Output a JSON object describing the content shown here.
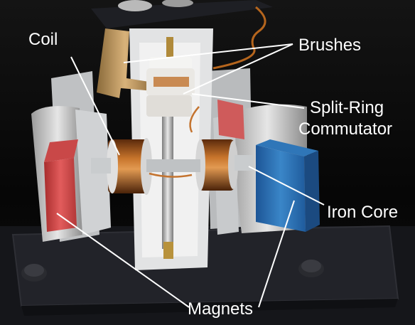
{
  "labels": {
    "coil": "Coil",
    "brushes": "Brushes",
    "split_ring_line1": "Split-Ring",
    "split_ring_line2": "Commutator",
    "iron_core": "Iron Core",
    "magnets": "Magnets"
  },
  "colors": {
    "label_text": "#ffffff",
    "pointer_line": "#ffffff",
    "red_magnet": "#d94a4a",
    "blue_magnet": "#2a6db0",
    "copper": "#b5651d",
    "base_plate": "#1c1d20",
    "background": "#0a0a0a"
  }
}
